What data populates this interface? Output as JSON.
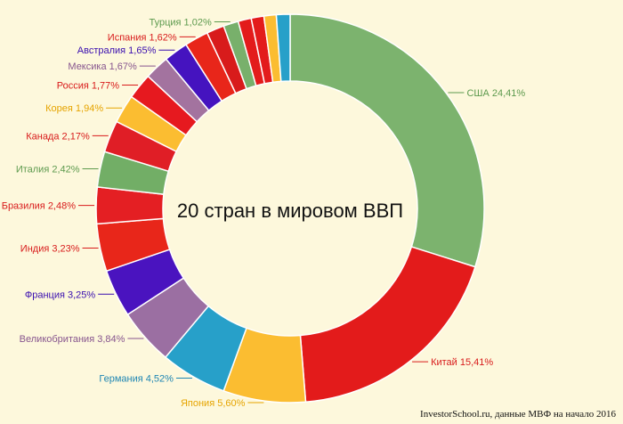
{
  "chart_data": {
    "type": "pie",
    "title": "20 стран в мировом ВВП",
    "credit": "InvestorSchool.ru, данные МВФ на начало 2016",
    "slices": [
      {
        "name": "США",
        "value": 24.41,
        "label": "США 24,41%",
        "color": "#7cb36e",
        "label_color": "#5d9a4e"
      },
      {
        "name": "Китай",
        "value": 15.41,
        "label": "Китай 15,41%",
        "color": "#e31b1b",
        "label_color": "#d81b1b"
      },
      {
        "name": "Япония",
        "value": 5.6,
        "label": "Япония 5,60%",
        "color": "#fbbd31",
        "label_color": "#e6a400"
      },
      {
        "name": "Германия",
        "value": 4.52,
        "label": "Германия 4,52%",
        "color": "#27a0c9",
        "label_color": "#1f86b3"
      },
      {
        "name": "Великобритания",
        "value": 3.84,
        "label": "Великобритания 3,84%",
        "color": "#9b6fa2",
        "label_color": "#87558e"
      },
      {
        "name": "Франция",
        "value": 3.25,
        "label": "Франция 3,25%",
        "color": "#4a13bf",
        "label_color": "#3a0fb0"
      },
      {
        "name": "Индия",
        "value": 3.23,
        "label": "Индия 3,23%",
        "color": "#e8261a",
        "label_color": "#d81b1b"
      },
      {
        "name": "Бразилия",
        "value": 2.48,
        "label": "Бразилия 2,48%",
        "color": "#e41f23",
        "label_color": "#d81b1b"
      },
      {
        "name": "Италия",
        "value": 2.42,
        "label": "Италия 2,42%",
        "color": "#72ae66",
        "label_color": "#5d9a4e"
      },
      {
        "name": "Канада",
        "value": 2.17,
        "label": "Канада 2,17%",
        "color": "#e01e26",
        "label_color": "#d81b1b"
      },
      {
        "name": "Корея",
        "value": 1.94,
        "label": "Корея 1,94%",
        "color": "#fbbd31",
        "label_color": "#e6a400"
      },
      {
        "name": "Россия",
        "value": 1.77,
        "label": "Россия 1,77%",
        "color": "#e6191f",
        "label_color": "#d81b1b"
      },
      {
        "name": "Мексика",
        "value": 1.67,
        "label": "Мексика 1,67%",
        "color": "#a3739f",
        "label_color": "#87558e"
      },
      {
        "name": "Австралия",
        "value": 1.65,
        "label": "Австралия 1,65%",
        "color": "#4513bf",
        "label_color": "#3a0fb0"
      },
      {
        "name": "Испания",
        "value": 1.62,
        "label": "Испания 1,62%",
        "color": "#e8261a",
        "label_color": "#d81b1b"
      },
      {
        "name": "",
        "value": 1.2,
        "label": "",
        "color": "#d81b1b",
        "label_color": "#d81b1b"
      },
      {
        "name": "Турция",
        "value": 1.02,
        "label": "Турция 1,02%",
        "color": "#78b06b",
        "label_color": "#5d9a4e"
      },
      {
        "name": "",
        "value": 0.9,
        "label": "",
        "color": "#e31b1b",
        "label_color": "#d81b1b"
      },
      {
        "name": "",
        "value": 0.86,
        "label": "",
        "color": "#e31b1b",
        "label_color": "#d81b1b"
      },
      {
        "name": "",
        "value": 0.84,
        "label": "",
        "color": "#fbbd31",
        "label_color": "#e6a400"
      },
      {
        "name": "",
        "value": 0.93,
        "label": "",
        "color": "#27a0c9",
        "label_color": "#1f86b3"
      }
    ]
  }
}
